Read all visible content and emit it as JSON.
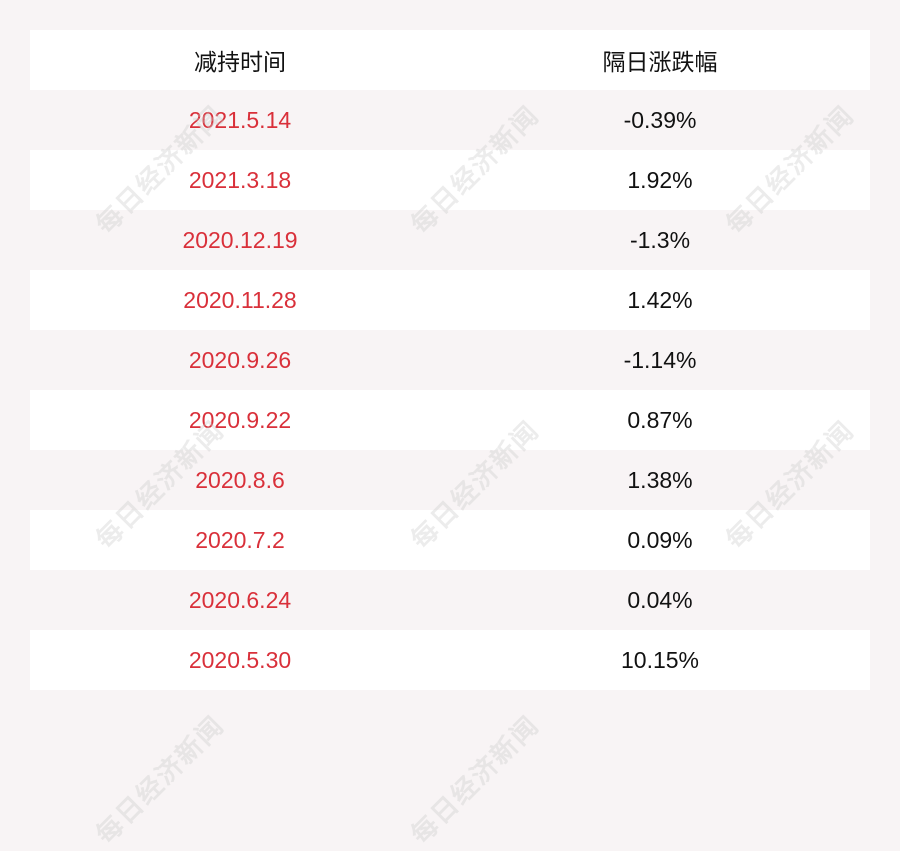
{
  "header": {
    "col1": "减持时间",
    "col2": "隔日涨跌幅"
  },
  "rows": [
    {
      "date": "2021.5.14",
      "change": "-0.39%"
    },
    {
      "date": "2021.3.18",
      "change": "1.92%"
    },
    {
      "date": "2020.12.19",
      "change": "-1.3%"
    },
    {
      "date": "2020.11.28",
      "change": "1.42%"
    },
    {
      "date": "2020.9.26",
      "change": "-1.14%"
    },
    {
      "date": "2020.9.22",
      "change": "0.87%"
    },
    {
      "date": "2020.8.6",
      "change": "1.38%"
    },
    {
      "date": "2020.7.2",
      "change": "0.09%"
    },
    {
      "date": "2020.6.24",
      "change": "0.04%"
    },
    {
      "date": "2020.5.30",
      "change": "10.15%"
    }
  ],
  "watermark": "每日经济新闻",
  "colors": {
    "date": "#d9303a",
    "background": "#f8f4f5"
  }
}
